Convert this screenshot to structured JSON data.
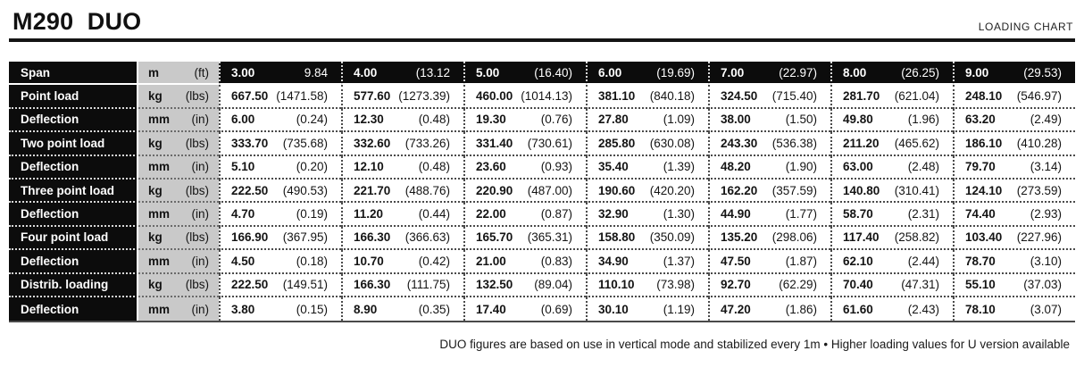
{
  "header": {
    "title": "M290  DUO",
    "right_label": "LOADING CHART"
  },
  "colors": {
    "header_black": "#0c0c0c",
    "units_gray": "#c9c9c9",
    "page_background": "#ffffff"
  },
  "table": {
    "rows": [
      {
        "header": true,
        "label": "Span",
        "unit_metric": "m",
        "unit_imperial": "(ft)",
        "cells": [
          {
            "metric": "3.00",
            "imperial": "9.84"
          },
          {
            "metric": "4.00",
            "imperial": "(13.12"
          },
          {
            "metric": "5.00",
            "imperial": "(16.40)"
          },
          {
            "metric": "6.00",
            "imperial": "(19.69)"
          },
          {
            "metric": "7.00",
            "imperial": "(22.97)"
          },
          {
            "metric": "8.00",
            "imperial": "(26.25)"
          },
          {
            "metric": "9.00",
            "imperial": "(29.53)"
          }
        ]
      },
      {
        "label": "Point load",
        "unit_metric": "kg",
        "unit_imperial": "(lbs)",
        "cells": [
          {
            "metric": "667.50",
            "imperial": "(1471.58)"
          },
          {
            "metric": "577.60",
            "imperial": "(1273.39)"
          },
          {
            "metric": "460.00",
            "imperial": "(1014.13)"
          },
          {
            "metric": "381.10",
            "imperial": "(840.18)"
          },
          {
            "metric": "324.50",
            "imperial": "(715.40)"
          },
          {
            "metric": "281.70",
            "imperial": "(621.04)"
          },
          {
            "metric": "248.10",
            "imperial": "(546.97)"
          }
        ]
      },
      {
        "label": "Deflection",
        "unit_metric": "mm",
        "unit_imperial": "(in)",
        "cells": [
          {
            "metric": "6.00",
            "imperial": "(0.24)"
          },
          {
            "metric": "12.30",
            "imperial": "(0.48)"
          },
          {
            "metric": "19.30",
            "imperial": "(0.76)"
          },
          {
            "metric": "27.80",
            "imperial": "(1.09)"
          },
          {
            "metric": "38.00",
            "imperial": "(1.50)"
          },
          {
            "metric": "49.80",
            "imperial": "(1.96)"
          },
          {
            "metric": "63.20",
            "imperial": "(2.49)"
          }
        ]
      },
      {
        "label": "Two point load",
        "unit_metric": "kg",
        "unit_imperial": "(lbs)",
        "cells": [
          {
            "metric": "333.70",
            "imperial": "(735.68)"
          },
          {
            "metric": "332.60",
            "imperial": "(733.26)"
          },
          {
            "metric": "331.40",
            "imperial": "(730.61)"
          },
          {
            "metric": "285.80",
            "imperial": "(630.08)"
          },
          {
            "metric": "243.30",
            "imperial": "(536.38)"
          },
          {
            "metric": "211.20",
            "imperial": "(465.62)"
          },
          {
            "metric": "186.10",
            "imperial": "(410.28)"
          }
        ]
      },
      {
        "label": "Deflection",
        "unit_metric": "mm",
        "unit_imperial": "(in)",
        "cells": [
          {
            "metric": "5.10",
            "imperial": "(0.20)"
          },
          {
            "metric": "12.10",
            "imperial": "(0.48)"
          },
          {
            "metric": "23.60",
            "imperial": "(0.93)"
          },
          {
            "metric": "35.40",
            "imperial": "(1.39)"
          },
          {
            "metric": "48.20",
            "imperial": "(1.90)"
          },
          {
            "metric": "63.00",
            "imperial": "(2.48)"
          },
          {
            "metric": "79.70",
            "imperial": "(3.14)"
          }
        ]
      },
      {
        "label": "Three point load",
        "unit_metric": "kg",
        "unit_imperial": "(lbs)",
        "cells": [
          {
            "metric": "222.50",
            "imperial": "(490.53)"
          },
          {
            "metric": "221.70",
            "imperial": "(488.76)"
          },
          {
            "metric": "220.90",
            "imperial": "(487.00)"
          },
          {
            "metric": "190.60",
            "imperial": "(420.20)"
          },
          {
            "metric": "162.20",
            "imperial": "(357.59)"
          },
          {
            "metric": "140.80",
            "imperial": "(310.41)"
          },
          {
            "metric": "124.10",
            "imperial": "(273.59)"
          }
        ]
      },
      {
        "label": "Deflection",
        "unit_metric": "mm",
        "unit_imperial": "(in)",
        "cells": [
          {
            "metric": "4.70",
            "imperial": "(0.19)"
          },
          {
            "metric": "11.20",
            "imperial": "(0.44)"
          },
          {
            "metric": "22.00",
            "imperial": "(0.87)"
          },
          {
            "metric": "32.90",
            "imperial": "(1.30)"
          },
          {
            "metric": "44.90",
            "imperial": "(1.77)"
          },
          {
            "metric": "58.70",
            "imperial": "(2.31)"
          },
          {
            "metric": "74.40",
            "imperial": "(2.93)"
          }
        ]
      },
      {
        "label": "Four point load",
        "unit_metric": "kg",
        "unit_imperial": "(lbs)",
        "cells": [
          {
            "metric": "166.90",
            "imperial": "(367.95)"
          },
          {
            "metric": "166.30",
            "imperial": "(366.63)"
          },
          {
            "metric": "165.70",
            "imperial": "(365.31)"
          },
          {
            "metric": "158.80",
            "imperial": "(350.09)"
          },
          {
            "metric": "135.20",
            "imperial": "(298.06)"
          },
          {
            "metric": "117.40",
            "imperial": "(258.82)"
          },
          {
            "metric": "103.40",
            "imperial": "(227.96)"
          }
        ]
      },
      {
        "label": "Deflection",
        "unit_metric": "mm",
        "unit_imperial": "(in)",
        "cells": [
          {
            "metric": "4.50",
            "imperial": "(0.18)"
          },
          {
            "metric": "10.70",
            "imperial": "(0.42)"
          },
          {
            "metric": "21.00",
            "imperial": "(0.83)"
          },
          {
            "metric": "34.90",
            "imperial": "(1.37)"
          },
          {
            "metric": "47.50",
            "imperial": "(1.87)"
          },
          {
            "metric": "62.10",
            "imperial": "(2.44)"
          },
          {
            "metric": "78.70",
            "imperial": "(3.10)"
          }
        ]
      },
      {
        "label": "Distrib. loading",
        "unit_metric": "kg",
        "unit_imperial": "(lbs)",
        "cells": [
          {
            "metric": "222.50",
            "imperial": "(149.51)"
          },
          {
            "metric": "166.30",
            "imperial": "(111.75)"
          },
          {
            "metric": "132.50",
            "imperial": "(89.04)"
          },
          {
            "metric": "110.10",
            "imperial": "(73.98)"
          },
          {
            "metric": "92.70",
            "imperial": "(62.29)"
          },
          {
            "metric": "70.40",
            "imperial": "(47.31)"
          },
          {
            "metric": "55.10",
            "imperial": "(37.03)"
          }
        ]
      },
      {
        "label": "Deflection",
        "unit_metric": "mm",
        "unit_imperial": "(in)",
        "cells": [
          {
            "metric": "3.80",
            "imperial": "(0.15)"
          },
          {
            "metric": "8.90",
            "imperial": "(0.35)"
          },
          {
            "metric": "17.40",
            "imperial": "(0.69)"
          },
          {
            "metric": "30.10",
            "imperial": "(1.19)"
          },
          {
            "metric": "47.20",
            "imperial": "(1.86)"
          },
          {
            "metric": "61.60",
            "imperial": "(2.43)"
          },
          {
            "metric": "78.10",
            "imperial": "(3.07)"
          }
        ]
      }
    ]
  },
  "footnote": "DUO figures are based on use in vertical mode and stabilized every 1m • Higher loading values for U version available"
}
